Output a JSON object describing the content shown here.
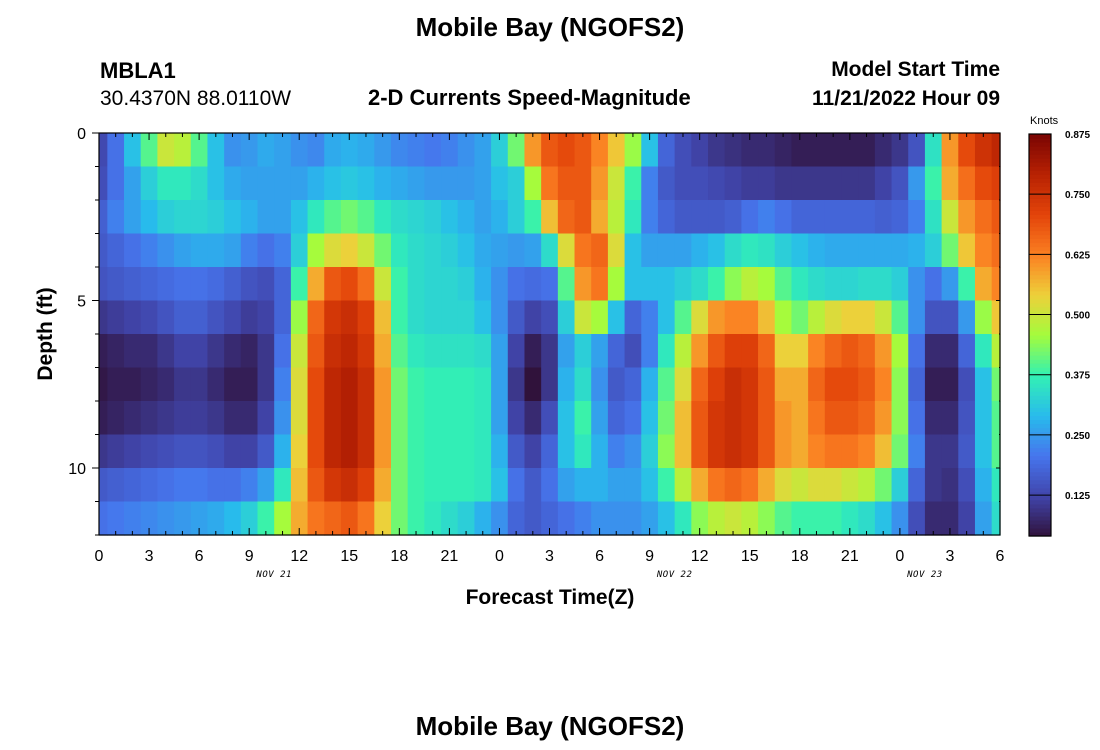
{
  "page": {
    "title_top": "Mobile Bay (NGOFS2)",
    "title_bottom": "Mobile Bay (NGOFS2)",
    "station_id": "MBLA1",
    "station_coords": "30.4370N  88.0110W",
    "subtitle": "2-D Currents Speed-Magnitude",
    "model_start_label": "Model Start Time",
    "model_start_value": "11/21/2022 Hour 09"
  },
  "chart_data": {
    "type": "heatmap",
    "title": "2-D Currents Speed-Magnitude",
    "xlabel": "Forecast Time(Z)",
    "ylabel": "Depth (ft)",
    "x_ticks": [
      "0",
      "3",
      "6",
      "9",
      "12",
      "15",
      "18",
      "21",
      "0",
      "3",
      "6",
      "9",
      "12",
      "15",
      "18",
      "21",
      "0",
      "3",
      "6"
    ],
    "date_labels": [
      {
        "label": "NOV 21",
        "at_tick": 3.5
      },
      {
        "label": "NOV 22",
        "at_tick": 11.5
      },
      {
        "label": "NOV 23",
        "at_tick": 16.5
      }
    ],
    "y_ticks": [
      "0",
      "5",
      "10"
    ],
    "ylim": [
      0,
      12
    ],
    "y_reversed": true,
    "x_hours": [
      0,
      54
    ],
    "colorbar": {
      "label": "Knots",
      "ticks": [
        "0.125",
        "0.250",
        "0.375",
        "0.500",
        "0.625",
        "0.750",
        "0.875"
      ],
      "range": [
        0.04,
        0.875
      ]
    },
    "columns_hours": [
      0,
      1,
      2,
      3,
      4,
      5,
      6,
      7,
      8,
      9,
      10,
      11,
      12,
      13,
      14,
      15,
      16,
      17,
      18,
      19,
      20,
      21,
      22,
      23,
      24,
      25,
      26,
      27,
      28,
      29,
      30,
      31,
      32,
      33,
      34,
      35,
      36,
      37,
      38,
      39,
      40,
      41,
      42,
      43,
      44,
      45,
      46,
      47,
      48,
      49,
      50,
      51,
      52,
      53,
      54
    ],
    "rows_depth_ft": [
      0.5,
      1.5,
      2.5,
      3.5,
      4.5,
      5.5,
      6.5,
      7.5,
      8.5,
      9.5,
      10.5,
      11.5
    ],
    "speed_knots": [
      [
        0.13,
        0.2,
        0.3,
        0.4,
        0.5,
        0.48,
        0.4,
        0.3,
        0.24,
        0.25,
        0.27,
        0.26,
        0.24,
        0.23,
        0.27,
        0.28,
        0.27,
        0.25,
        0.23,
        0.22,
        0.21,
        0.22,
        0.24,
        0.26,
        0.32,
        0.42,
        0.6,
        0.68,
        0.7,
        0.68,
        0.62,
        0.55,
        0.45,
        0.3,
        0.18,
        0.14,
        0.12,
        0.1,
        0.09,
        0.08,
        0.08,
        0.07,
        0.06,
        0.06,
        0.06,
        0.06,
        0.06,
        0.08,
        0.1,
        0.15,
        0.35,
        0.6,
        0.7,
        0.75,
        0.78
      ],
      [
        0.14,
        0.2,
        0.26,
        0.32,
        0.36,
        0.36,
        0.34,
        0.3,
        0.27,
        0.26,
        0.26,
        0.26,
        0.26,
        0.28,
        0.3,
        0.31,
        0.3,
        0.28,
        0.27,
        0.26,
        0.25,
        0.25,
        0.25,
        0.26,
        0.3,
        0.32,
        0.46,
        0.64,
        0.68,
        0.68,
        0.6,
        0.5,
        0.38,
        0.22,
        0.16,
        0.14,
        0.14,
        0.13,
        0.12,
        0.11,
        0.11,
        0.1,
        0.1,
        0.1,
        0.1,
        0.1,
        0.1,
        0.12,
        0.15,
        0.25,
        0.38,
        0.58,
        0.65,
        0.7,
        0.72
      ],
      [
        0.17,
        0.22,
        0.26,
        0.29,
        0.32,
        0.33,
        0.33,
        0.32,
        0.3,
        0.28,
        0.26,
        0.26,
        0.3,
        0.36,
        0.4,
        0.42,
        0.4,
        0.36,
        0.34,
        0.33,
        0.32,
        0.3,
        0.28,
        0.26,
        0.28,
        0.32,
        0.38,
        0.56,
        0.66,
        0.68,
        0.58,
        0.48,
        0.36,
        0.22,
        0.18,
        0.16,
        0.16,
        0.16,
        0.17,
        0.2,
        0.22,
        0.2,
        0.18,
        0.18,
        0.18,
        0.18,
        0.18,
        0.17,
        0.18,
        0.22,
        0.35,
        0.5,
        0.6,
        0.65,
        0.68
      ],
      [
        0.16,
        0.18,
        0.2,
        0.22,
        0.24,
        0.26,
        0.27,
        0.27,
        0.26,
        0.22,
        0.2,
        0.22,
        0.32,
        0.46,
        0.52,
        0.54,
        0.5,
        0.42,
        0.36,
        0.34,
        0.33,
        0.32,
        0.3,
        0.27,
        0.26,
        0.25,
        0.26,
        0.34,
        0.52,
        0.64,
        0.66,
        0.52,
        0.3,
        0.26,
        0.26,
        0.26,
        0.28,
        0.3,
        0.34,
        0.36,
        0.35,
        0.32,
        0.3,
        0.28,
        0.27,
        0.27,
        0.27,
        0.27,
        0.27,
        0.28,
        0.32,
        0.42,
        0.55,
        0.62,
        0.65
      ],
      [
        0.15,
        0.16,
        0.17,
        0.18,
        0.19,
        0.2,
        0.2,
        0.19,
        0.17,
        0.15,
        0.14,
        0.18,
        0.38,
        0.58,
        0.68,
        0.7,
        0.65,
        0.5,
        0.38,
        0.34,
        0.33,
        0.33,
        0.32,
        0.28,
        0.24,
        0.2,
        0.19,
        0.2,
        0.4,
        0.6,
        0.64,
        0.46,
        0.3,
        0.3,
        0.3,
        0.32,
        0.34,
        0.38,
        0.44,
        0.48,
        0.46,
        0.4,
        0.36,
        0.34,
        0.33,
        0.33,
        0.34,
        0.34,
        0.32,
        0.24,
        0.2,
        0.25,
        0.38,
        0.58,
        0.62
      ],
      [
        0.1,
        0.11,
        0.12,
        0.13,
        0.15,
        0.17,
        0.17,
        0.15,
        0.13,
        0.11,
        0.12,
        0.18,
        0.45,
        0.66,
        0.74,
        0.76,
        0.72,
        0.56,
        0.38,
        0.34,
        0.33,
        0.33,
        0.33,
        0.3,
        0.24,
        0.16,
        0.12,
        0.14,
        0.32,
        0.5,
        0.46,
        0.3,
        0.18,
        0.22,
        0.3,
        0.4,
        0.52,
        0.6,
        0.62,
        0.62,
        0.56,
        0.46,
        0.42,
        0.48,
        0.52,
        0.54,
        0.54,
        0.5,
        0.4,
        0.24,
        0.15,
        0.15,
        0.25,
        0.45,
        0.55
      ],
      [
        0.06,
        0.07,
        0.08,
        0.08,
        0.1,
        0.12,
        0.12,
        0.1,
        0.08,
        0.07,
        0.1,
        0.2,
        0.5,
        0.68,
        0.76,
        0.78,
        0.74,
        0.58,
        0.4,
        0.36,
        0.35,
        0.35,
        0.35,
        0.34,
        0.26,
        0.12,
        0.06,
        0.1,
        0.26,
        0.32,
        0.26,
        0.18,
        0.14,
        0.22,
        0.36,
        0.48,
        0.6,
        0.68,
        0.72,
        0.72,
        0.66,
        0.54,
        0.54,
        0.62,
        0.66,
        0.68,
        0.66,
        0.6,
        0.46,
        0.2,
        0.08,
        0.08,
        0.18,
        0.36,
        0.48
      ],
      [
        0.05,
        0.06,
        0.06,
        0.07,
        0.08,
        0.1,
        0.1,
        0.08,
        0.06,
        0.06,
        0.1,
        0.22,
        0.52,
        0.7,
        0.78,
        0.8,
        0.76,
        0.6,
        0.42,
        0.38,
        0.37,
        0.37,
        0.37,
        0.36,
        0.26,
        0.1,
        0.04,
        0.1,
        0.28,
        0.34,
        0.24,
        0.16,
        0.18,
        0.28,
        0.4,
        0.52,
        0.66,
        0.72,
        0.76,
        0.74,
        0.68,
        0.58,
        0.58,
        0.66,
        0.7,
        0.7,
        0.68,
        0.62,
        0.44,
        0.18,
        0.06,
        0.06,
        0.14,
        0.3,
        0.42
      ],
      [
        0.06,
        0.07,
        0.08,
        0.09,
        0.1,
        0.11,
        0.11,
        0.1,
        0.08,
        0.08,
        0.12,
        0.24,
        0.52,
        0.7,
        0.78,
        0.8,
        0.76,
        0.6,
        0.42,
        0.38,
        0.37,
        0.37,
        0.37,
        0.36,
        0.26,
        0.12,
        0.08,
        0.14,
        0.3,
        0.38,
        0.26,
        0.18,
        0.2,
        0.3,
        0.42,
        0.56,
        0.68,
        0.74,
        0.76,
        0.74,
        0.68,
        0.6,
        0.58,
        0.64,
        0.68,
        0.68,
        0.66,
        0.6,
        0.44,
        0.2,
        0.08,
        0.08,
        0.15,
        0.3,
        0.4
      ],
      [
        0.1,
        0.11,
        0.12,
        0.13,
        0.14,
        0.15,
        0.15,
        0.14,
        0.12,
        0.12,
        0.16,
        0.28,
        0.54,
        0.7,
        0.78,
        0.8,
        0.76,
        0.6,
        0.42,
        0.38,
        0.37,
        0.37,
        0.37,
        0.36,
        0.28,
        0.16,
        0.12,
        0.18,
        0.3,
        0.36,
        0.28,
        0.22,
        0.24,
        0.32,
        0.44,
        0.56,
        0.68,
        0.74,
        0.76,
        0.74,
        0.68,
        0.6,
        0.58,
        0.62,
        0.64,
        0.64,
        0.62,
        0.56,
        0.42,
        0.22,
        0.1,
        0.1,
        0.16,
        0.3,
        0.4
      ],
      [
        0.16,
        0.17,
        0.18,
        0.19,
        0.2,
        0.21,
        0.21,
        0.2,
        0.2,
        0.22,
        0.26,
        0.36,
        0.56,
        0.68,
        0.74,
        0.76,
        0.72,
        0.58,
        0.42,
        0.38,
        0.37,
        0.37,
        0.37,
        0.36,
        0.3,
        0.2,
        0.16,
        0.2,
        0.26,
        0.28,
        0.28,
        0.26,
        0.26,
        0.3,
        0.38,
        0.48,
        0.58,
        0.64,
        0.66,
        0.64,
        0.58,
        0.52,
        0.5,
        0.52,
        0.52,
        0.5,
        0.48,
        0.42,
        0.32,
        0.18,
        0.1,
        0.09,
        0.14,
        0.28,
        0.36
      ],
      [
        0.2,
        0.21,
        0.22,
        0.23,
        0.24,
        0.25,
        0.26,
        0.27,
        0.29,
        0.32,
        0.38,
        0.46,
        0.58,
        0.64,
        0.66,
        0.68,
        0.64,
        0.54,
        0.42,
        0.38,
        0.36,
        0.34,
        0.32,
        0.28,
        0.24,
        0.18,
        0.16,
        0.18,
        0.2,
        0.22,
        0.24,
        0.24,
        0.24,
        0.26,
        0.3,
        0.36,
        0.44,
        0.48,
        0.5,
        0.48,
        0.44,
        0.4,
        0.38,
        0.38,
        0.38,
        0.36,
        0.34,
        0.3,
        0.24,
        0.14,
        0.08,
        0.08,
        0.12,
        0.26,
        0.34
      ]
    ]
  }
}
